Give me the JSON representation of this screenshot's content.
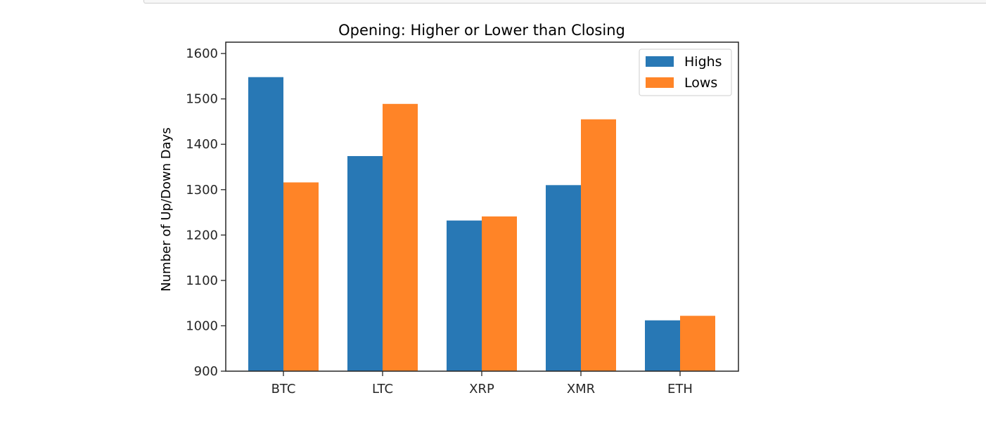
{
  "chart_data": {
    "type": "bar",
    "title": "Opening: Higher or Lower than Closing",
    "xlabel": "",
    "ylabel": "Number of Up/Down Days",
    "categories": [
      "BTC",
      "LTC",
      "XRP",
      "XMR",
      "ETH"
    ],
    "series": [
      {
        "name": "Highs",
        "color": "#2878b5",
        "values": [
          1548,
          1374,
          1232,
          1310,
          1012
        ]
      },
      {
        "name": "Lows",
        "color": "#ff8427",
        "values": [
          1316,
          1489,
          1241,
          1455,
          1022
        ]
      }
    ],
    "ylim": [
      900,
      1625
    ],
    "yticks": [
      900,
      1000,
      1100,
      1200,
      1300,
      1400,
      1500,
      1600
    ],
    "grid": false,
    "legend_position": "top-right"
  }
}
